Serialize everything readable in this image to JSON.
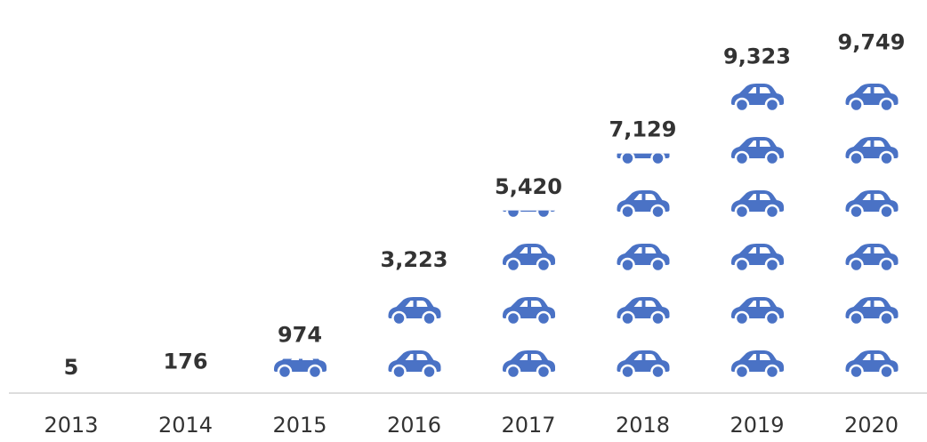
{
  "chart_data": {
    "type": "pictogram",
    "categories": [
      "2013",
      "2014",
      "2015",
      "2016",
      "2017",
      "2018",
      "2019",
      "2020"
    ],
    "values": [
      5,
      176,
      974,
      3223,
      5420,
      7129,
      9323,
      9749
    ],
    "value_labels": [
      "5",
      "176",
      "974",
      "3,223",
      "5,420",
      "7,129",
      "9,323",
      "9,749"
    ],
    "color": "#4a72c5",
    "ylim": [
      0,
      9600
    ]
  }
}
